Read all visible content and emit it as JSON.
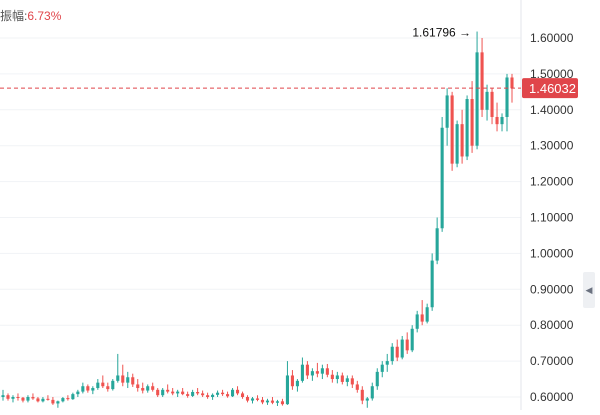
{
  "header": {
    "change_label": "振幅:",
    "change_value": "6.73%"
  },
  "colors": {
    "up": "#26a69a",
    "down": "#ef5350",
    "price_line": "#e0454a",
    "axis_text": "#333333",
    "grid": "#f1f3f6"
  },
  "icons": {
    "side_handle": "chevron-left-icon"
  },
  "chart_data": {
    "type": "candlestick",
    "y_axis_position": "right",
    "ylim": [
      0.57,
      1.67
    ],
    "y_ticks": [
      "0.60000",
      "0.70000",
      "0.80000",
      "0.90000",
      "1.00000",
      "1.10000",
      "1.20000",
      "1.30000",
      "1.40000",
      "1.50000",
      "1.60000"
    ],
    "current_price": "1.46032",
    "high_marker": {
      "label": "1.61796",
      "value": 1.61796
    },
    "grid": true,
    "candles": [
      [
        0.6,
        0.62,
        0.59,
        0.605
      ],
      [
        0.605,
        0.61,
        0.59,
        0.595
      ],
      [
        0.595,
        0.605,
        0.585,
        0.6
      ],
      [
        0.6,
        0.61,
        0.59,
        0.598
      ],
      [
        0.598,
        0.6,
        0.585,
        0.59
      ],
      [
        0.59,
        0.605,
        0.585,
        0.6
      ],
      [
        0.6,
        0.61,
        0.592,
        0.596
      ],
      [
        0.596,
        0.6,
        0.585,
        0.588
      ],
      [
        0.588,
        0.6,
        0.585,
        0.595
      ],
      [
        0.595,
        0.605,
        0.59,
        0.592
      ],
      [
        0.592,
        0.6,
        0.578,
        0.582
      ],
      [
        0.582,
        0.59,
        0.57,
        0.588
      ],
      [
        0.588,
        0.6,
        0.585,
        0.597
      ],
      [
        0.597,
        0.605,
        0.59,
        0.594
      ],
      [
        0.594,
        0.612,
        0.592,
        0.608
      ],
      [
        0.608,
        0.62,
        0.6,
        0.615
      ],
      [
        0.615,
        0.64,
        0.61,
        0.63
      ],
      [
        0.63,
        0.635,
        0.612,
        0.618
      ],
      [
        0.618,
        0.63,
        0.608,
        0.625
      ],
      [
        0.625,
        0.65,
        0.62,
        0.64
      ],
      [
        0.64,
        0.66,
        0.625,
        0.63
      ],
      [
        0.63,
        0.64,
        0.615,
        0.622
      ],
      [
        0.622,
        0.65,
        0.618,
        0.645
      ],
      [
        0.645,
        0.72,
        0.64,
        0.66
      ],
      [
        0.66,
        0.69,
        0.63,
        0.64
      ],
      [
        0.64,
        0.67,
        0.625,
        0.655
      ],
      [
        0.655,
        0.665,
        0.628,
        0.635
      ],
      [
        0.635,
        0.65,
        0.615,
        0.625
      ],
      [
        0.625,
        0.64,
        0.61,
        0.618
      ],
      [
        0.618,
        0.635,
        0.612,
        0.63
      ],
      [
        0.63,
        0.64,
        0.615,
        0.62
      ],
      [
        0.62,
        0.625,
        0.6,
        0.605
      ],
      [
        0.605,
        0.625,
        0.6,
        0.62
      ],
      [
        0.62,
        0.635,
        0.61,
        0.615
      ],
      [
        0.615,
        0.625,
        0.605,
        0.61
      ],
      [
        0.61,
        0.62,
        0.6,
        0.615
      ],
      [
        0.615,
        0.625,
        0.605,
        0.608
      ],
      [
        0.608,
        0.615,
        0.598,
        0.603
      ],
      [
        0.603,
        0.62,
        0.6,
        0.614
      ],
      [
        0.614,
        0.625,
        0.605,
        0.61
      ],
      [
        0.61,
        0.618,
        0.6,
        0.605
      ],
      [
        0.605,
        0.612,
        0.595,
        0.6
      ],
      [
        0.6,
        0.61,
        0.592,
        0.606
      ],
      [
        0.606,
        0.618,
        0.6,
        0.612
      ],
      [
        0.612,
        0.62,
        0.603,
        0.608
      ],
      [
        0.608,
        0.615,
        0.598,
        0.602
      ],
      [
        0.602,
        0.625,
        0.6,
        0.62
      ],
      [
        0.62,
        0.63,
        0.605,
        0.61
      ],
      [
        0.61,
        0.615,
        0.595,
        0.6
      ],
      [
        0.6,
        0.605,
        0.585,
        0.59
      ],
      [
        0.59,
        0.6,
        0.582,
        0.596
      ],
      [
        0.596,
        0.605,
        0.588,
        0.592
      ],
      [
        0.592,
        0.6,
        0.58,
        0.585
      ],
      [
        0.585,
        0.595,
        0.578,
        0.59
      ],
      [
        0.59,
        0.6,
        0.58,
        0.584
      ],
      [
        0.584,
        0.592,
        0.575,
        0.588
      ],
      [
        0.588,
        0.595,
        0.576,
        0.58
      ],
      [
        0.58,
        0.7,
        0.578,
        0.66
      ],
      [
        0.66,
        0.675,
        0.62,
        0.63
      ],
      [
        0.63,
        0.65,
        0.615,
        0.645
      ],
      [
        0.645,
        0.71,
        0.64,
        0.69
      ],
      [
        0.69,
        0.7,
        0.65,
        0.66
      ],
      [
        0.66,
        0.68,
        0.645,
        0.672
      ],
      [
        0.672,
        0.695,
        0.655,
        0.665
      ],
      [
        0.665,
        0.69,
        0.65,
        0.68
      ],
      [
        0.68,
        0.692,
        0.655,
        0.662
      ],
      [
        0.662,
        0.675,
        0.64,
        0.65
      ],
      [
        0.65,
        0.67,
        0.638,
        0.66
      ],
      [
        0.66,
        0.668,
        0.635,
        0.642
      ],
      [
        0.642,
        0.66,
        0.63,
        0.652
      ],
      [
        0.652,
        0.66,
        0.625,
        0.635
      ],
      [
        0.635,
        0.645,
        0.612,
        0.62
      ],
      [
        0.62,
        0.63,
        0.58,
        0.59
      ],
      [
        0.59,
        0.6,
        0.57,
        0.596
      ],
      [
        0.596,
        0.64,
        0.59,
        0.63
      ],
      [
        0.63,
        0.68,
        0.62,
        0.67
      ],
      [
        0.67,
        0.7,
        0.655,
        0.69
      ],
      [
        0.69,
        0.72,
        0.67,
        0.7
      ],
      [
        0.7,
        0.75,
        0.69,
        0.74
      ],
      [
        0.74,
        0.76,
        0.7,
        0.71
      ],
      [
        0.71,
        0.77,
        0.705,
        0.76
      ],
      [
        0.76,
        0.78,
        0.72,
        0.73
      ],
      [
        0.73,
        0.8,
        0.725,
        0.79
      ],
      [
        0.79,
        0.84,
        0.78,
        0.83
      ],
      [
        0.83,
        0.87,
        0.8,
        0.81
      ],
      [
        0.81,
        0.86,
        0.805,
        0.85
      ],
      [
        0.85,
        1.0,
        0.84,
        0.98
      ],
      [
        0.98,
        1.1,
        0.97,
        1.07
      ],
      [
        1.07,
        1.38,
        1.06,
        1.35
      ],
      [
        1.35,
        1.46,
        1.3,
        1.44
      ],
      [
        1.44,
        1.45,
        1.23,
        1.25
      ],
      [
        1.25,
        1.37,
        1.24,
        1.36
      ],
      [
        1.36,
        1.4,
        1.25,
        1.27
      ],
      [
        1.27,
        1.44,
        1.26,
        1.43
      ],
      [
        1.43,
        1.48,
        1.28,
        1.3
      ],
      [
        1.3,
        1.618,
        1.29,
        1.56
      ],
      [
        1.56,
        1.6,
        1.38,
        1.4
      ],
      [
        1.4,
        1.47,
        1.37,
        1.45
      ],
      [
        1.45,
        1.46,
        1.36,
        1.38
      ],
      [
        1.38,
        1.42,
        1.34,
        1.36
      ],
      [
        1.36,
        1.39,
        1.34,
        1.38
      ],
      [
        1.38,
        1.5,
        1.34,
        1.49
      ],
      [
        1.49,
        1.5,
        1.42,
        1.46
      ]
    ]
  }
}
